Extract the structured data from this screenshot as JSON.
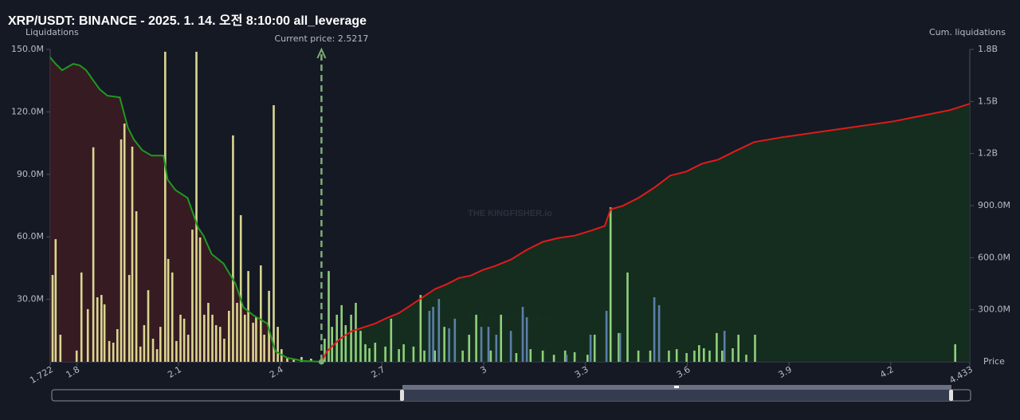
{
  "chart_data": {
    "type": "liquidation",
    "title": "XRP/USDT: BINANCE - 2025. 1. 14. 오전 8:10:00 all_leverage",
    "ylabel": "Liquidations",
    "y2label": "Cum. liquidations",
    "xlabel": "Price",
    "watermark": "THE KINGFISHER.io",
    "current_price": {
      "value": 2.5217,
      "label": "Current price: 2.5217",
      "color": "#7fae7a"
    },
    "xlim": [
      1.722,
      4.433
    ],
    "xticks": [
      1.722,
      1.8,
      2.1,
      2.4,
      2.7,
      3,
      3.3,
      3.6,
      3.9,
      4.2,
      4.433
    ],
    "ylim": [
      0,
      150000000
    ],
    "yticks": [
      {
        "value": 30000000,
        "label": "30.0M"
      },
      {
        "value": 60000000,
        "label": "60.0M"
      },
      {
        "value": 90000000,
        "label": "90.0M"
      },
      {
        "value": 120000000,
        "label": "120.0M"
      },
      {
        "value": 150000000,
        "label": "150.0M"
      }
    ],
    "y2lim": [
      0,
      1800000000
    ],
    "y2ticks": [
      {
        "value": 300000000,
        "label": "300.0M"
      },
      {
        "value": 600000000,
        "label": "600.0M"
      },
      {
        "value": 900000000,
        "label": "900.0M"
      },
      {
        "value": 1200000000,
        "label": "1.2B"
      },
      {
        "value": 1500000000,
        "label": "1.5B"
      },
      {
        "value": 1800000000,
        "label": "1.8B"
      }
    ],
    "series": [
      {
        "type": "bar",
        "color": "#d9d68f",
        "x": [
          1.729,
          1.738,
          1.752,
          1.8,
          1.814,
          1.833,
          1.849,
          1.861,
          1.873,
          1.882,
          1.896,
          1.908,
          1.92,
          1.931,
          1.941,
          1.955,
          1.964,
          1.976,
          1.988,
          1.999,
          2.011,
          2.025,
          2.037,
          2.047,
          2.061,
          2.07,
          2.082,
          2.094,
          2.106,
          2.117,
          2.129,
          2.141,
          2.153,
          2.164,
          2.176,
          2.188,
          2.2,
          2.211,
          2.223,
          2.235,
          2.249,
          2.261,
          2.273,
          2.284,
          2.296,
          2.306,
          2.32,
          2.329,
          2.343,
          2.353,
          2.367,
          2.381,
          2.393,
          2.404,
          2.421,
          2.44,
          2.463,
          2.491
        ],
        "values": [
          41700000,
          58900000,
          13000000,
          5400000,
          42900000,
          25300000,
          103000000,
          31000000,
          32100000,
          27600000,
          10000000,
          9200000,
          15700000,
          106800000,
          114400000,
          41700000,
          103300000,
          72300000,
          7300000,
          17600000,
          34400000,
          11100000,
          6100000,
          16800000,
          148900000,
          49400000,
          42900000,
          10000000,
          22600000,
          20700000,
          13000000,
          63500000,
          148900000,
          59700000,
          22600000,
          28300000,
          22600000,
          17600000,
          16800000,
          11100000,
          24500000,
          108700000,
          28300000,
          70400000,
          22600000,
          43600000,
          18800000,
          21400000,
          46300000,
          13000000,
          34100000,
          123200000,
          16800000,
          6100000,
          2300000,
          1500000,
          2300000,
          1500000
        ]
      },
      {
        "type": "bar",
        "color": "#8fd07a",
        "x": [
          2.531,
          2.543,
          2.553,
          2.567,
          2.581,
          2.593,
          2.609,
          2.623,
          2.637,
          2.651,
          2.663,
          2.68,
          2.71,
          2.727,
          2.75,
          2.764,
          2.793,
          2.814,
          2.825,
          2.856,
          2.884,
          2.938,
          2.957,
          2.978,
          3.021,
          3.051,
          3.096,
          3.138,
          3.174,
          3.207,
          3.24,
          3.268,
          3.306,
          3.327,
          3.374,
          3.398,
          3.424,
          3.456,
          3.491,
          3.546,
          3.569,
          3.598,
          3.621,
          3.635,
          3.649,
          3.666,
          3.687,
          3.703,
          3.734,
          3.751,
          3.774,
          3.8,
          4.39
        ],
        "values": [
          11100000,
          43600000,
          16800000,
          22600000,
          27200000,
          17600000,
          22600000,
          28300000,
          14900000,
          8400000,
          6500000,
          9200000,
          7300000,
          20700000,
          6100000,
          8400000,
          7300000,
          32100000,
          5400000,
          5400000,
          16800000,
          5400000,
          13000000,
          22600000,
          5400000,
          22600000,
          4200000,
          6100000,
          5400000,
          3400000,
          5400000,
          4600000,
          3400000,
          13000000,
          74200000,
          13800000,
          42900000,
          5400000,
          5400000,
          5400000,
          6100000,
          4200000,
          5400000,
          8000000,
          6500000,
          5400000,
          13800000,
          5400000,
          6500000,
          13000000,
          3400000,
          13000000,
          8400000
        ]
      },
      {
        "type": "bar",
        "color": "#5b7fa8",
        "x": [
          2.84,
          2.851,
          2.868,
          2.898,
          2.915,
          2.993,
          3.014,
          3.037,
          3.08,
          3.115,
          3.127,
          3.244,
          3.315,
          3.362,
          3.402,
          3.503,
          3.517,
          3.71
        ],
        "values": [
          24500000,
          26400000,
          30200000,
          16100000,
          20700000,
          16800000,
          16800000,
          13000000,
          14900000,
          26400000,
          21400000,
          3400000,
          13000000,
          24500000,
          13800000,
          31000000,
          27200000,
          14900000
        ]
      },
      {
        "type": "line",
        "axis": "y2",
        "color": "#1f9a1f",
        "area_color": "#3a1c24",
        "x": [
          1.722,
          1.738,
          1.757,
          1.79,
          1.809,
          1.828,
          1.851,
          1.868,
          1.891,
          1.927,
          1.951,
          1.969,
          1.993,
          2.021,
          2.056,
          2.068,
          2.091,
          2.127,
          2.158,
          2.174,
          2.198,
          2.233,
          2.268,
          2.292,
          2.322,
          2.362,
          2.386,
          2.421,
          2.468,
          2.522
        ],
        "values": [
          1754000000,
          1717000000,
          1680000000,
          1717000000,
          1708000000,
          1680000000,
          1616000000,
          1570000000,
          1533000000,
          1524000000,
          1349000000,
          1280000000,
          1220000000,
          1188000000,
          1188000000,
          1050000000,
          990000000,
          944000000,
          773000000,
          727000000,
          621000000,
          566000000,
          451000000,
          313000000,
          267000000,
          221000000,
          60000000,
          23000000,
          5000000,
          0
        ]
      },
      {
        "type": "line",
        "axis": "y2",
        "color": "#e01b1b",
        "area_color": "#15301f",
        "x": [
          2.522,
          2.538,
          2.574,
          2.609,
          2.644,
          2.68,
          2.715,
          2.75,
          2.786,
          2.821,
          2.856,
          2.891,
          2.927,
          2.962,
          2.997,
          3.033,
          3.08,
          3.127,
          3.174,
          3.221,
          3.268,
          3.315,
          3.357,
          3.374,
          3.409,
          3.456,
          3.503,
          3.55,
          3.597,
          3.644,
          3.691,
          3.738,
          3.797,
          3.88,
          4.044,
          4.209,
          4.374,
          4.433
        ],
        "values": [
          0,
          60000000,
          129000000,
          175000000,
          198000000,
          221000000,
          253000000,
          281000000,
          327000000,
          373000000,
          419000000,
          447000000,
          483000000,
          497000000,
          529000000,
          552000000,
          589000000,
          645000000,
          691000000,
          714000000,
          727000000,
          755000000,
          783000000,
          879000000,
          898000000,
          944000000,
          1004000000,
          1073000000,
          1096000000,
          1142000000,
          1165000000,
          1211000000,
          1266000000,
          1294000000,
          1340000000,
          1386000000,
          1450000000,
          1487000000
        ]
      }
    ]
  }
}
